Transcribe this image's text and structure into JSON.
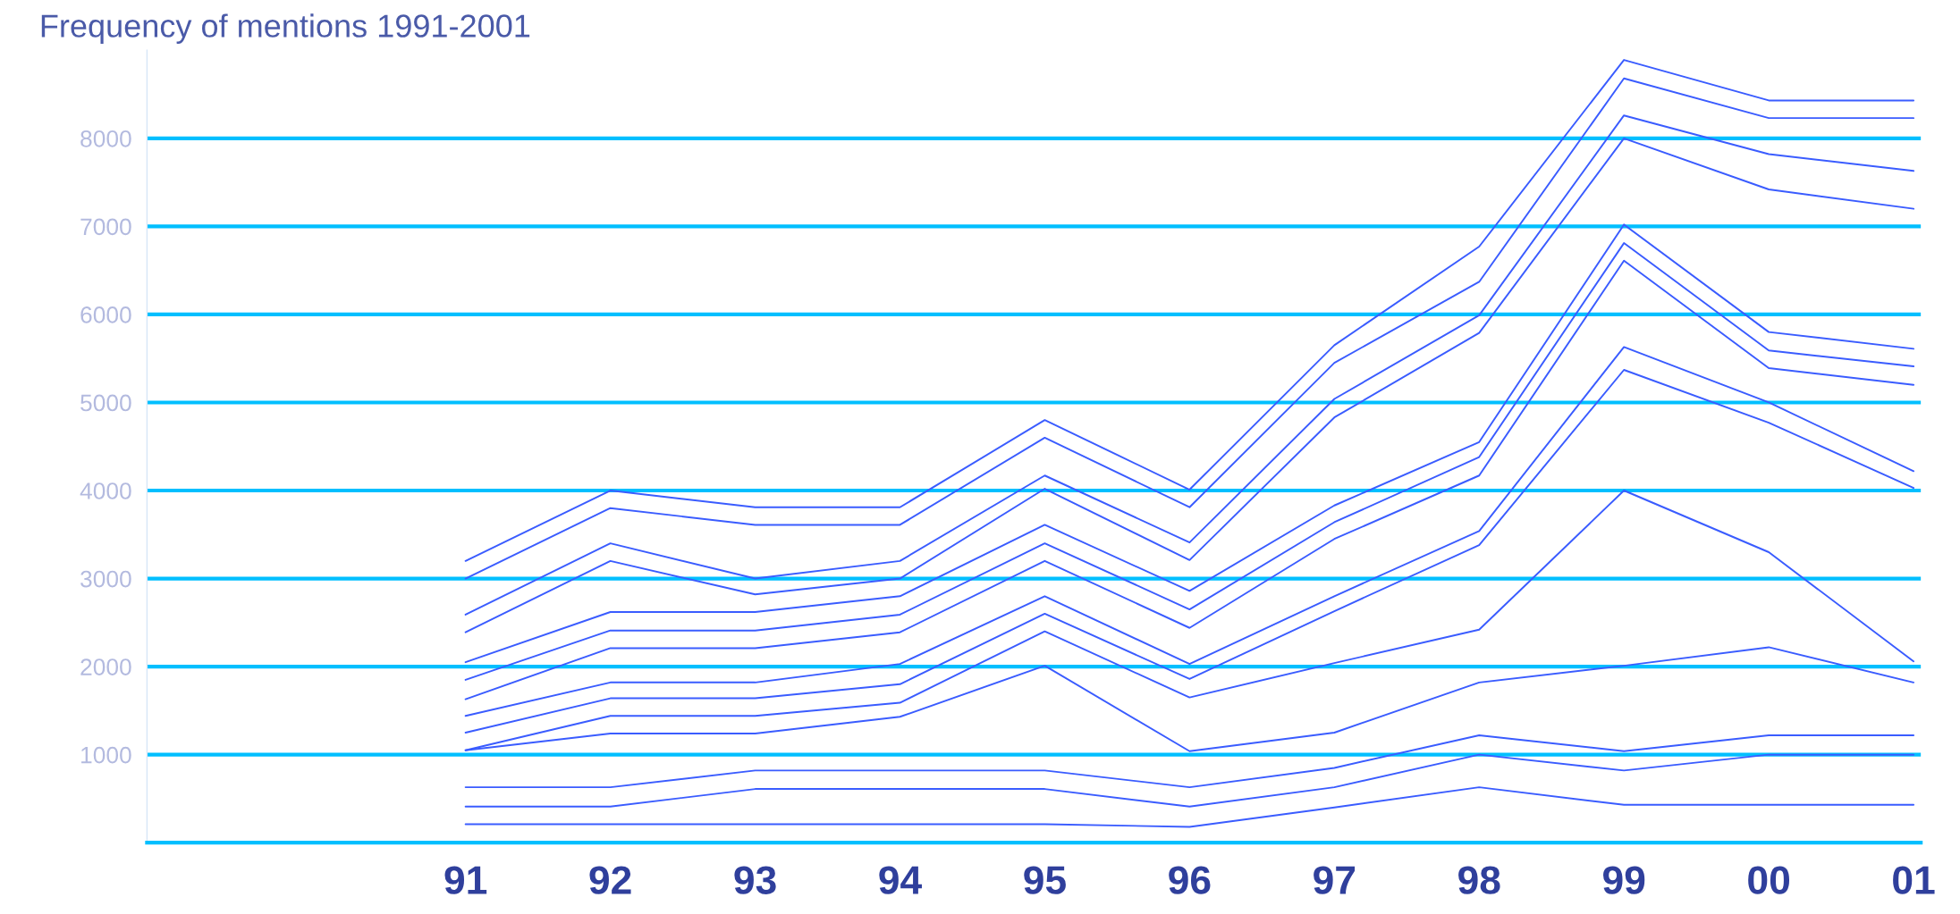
{
  "chart_data": {
    "type": "line",
    "title": "Frequency of mentions 1991-2001",
    "categories": [
      "91",
      "92",
      "93",
      "94",
      "95",
      "96",
      "97",
      "98",
      "99",
      "00",
      "01"
    ],
    "series": [
      {
        "color": "#3a5cff",
        "values": [
          210,
          210,
          210,
          210,
          210,
          180,
          400,
          630,
          430,
          430,
          430
        ]
      },
      {
        "color": "#3a5cff",
        "values": [
          410,
          410,
          610,
          610,
          610,
          410,
          630,
          1000,
          820,
          1000,
          1000
        ]
      },
      {
        "color": "#3a5cff",
        "values": [
          630,
          630,
          820,
          820,
          820,
          630,
          850,
          1220,
          1040,
          1220,
          1220
        ]
      },
      {
        "color": "#3a5cff",
        "values": [
          1050,
          1240,
          1240,
          1430,
          2010,
          1040,
          1250,
          1820,
          2010,
          2220,
          1820
        ]
      },
      {
        "color": "#3a5cff",
        "values": [
          1050,
          1440,
          1440,
          1590,
          2400,
          1650,
          2040,
          2420,
          4000,
          3300,
          2060
        ]
      },
      {
        "color": "#3a5cff",
        "values": [
          1250,
          1640,
          1640,
          1800,
          2600,
          1860,
          2630,
          3380,
          5370,
          4770,
          4030
        ]
      },
      {
        "color": "#3a5cff",
        "values": [
          1440,
          1820,
          1820,
          2030,
          2800,
          2030,
          2800,
          3540,
          5630,
          5000,
          4220
        ]
      },
      {
        "color": "#3a5cff",
        "values": [
          1630,
          2210,
          2210,
          2390,
          3200,
          2440,
          3450,
          4170,
          6610,
          5390,
          5200
        ]
      },
      {
        "color": "#3a5cff",
        "values": [
          1850,
          2410,
          2410,
          2590,
          3400,
          2650,
          3640,
          4380,
          6810,
          5590,
          5410
        ]
      },
      {
        "color": "#3a5cff",
        "values": [
          2050,
          2620,
          2620,
          2800,
          3610,
          2860,
          3830,
          4550,
          7020,
          5800,
          5610
        ]
      },
      {
        "color": "#3a5cff",
        "values": [
          2390,
          3200,
          2820,
          3000,
          4020,
          3210,
          4830,
          5790,
          8000,
          7420,
          7200
        ]
      },
      {
        "color": "#3a5cff",
        "values": [
          2590,
          3400,
          3000,
          3200,
          4170,
          3410,
          5040,
          5990,
          8260,
          7820,
          7630
        ]
      },
      {
        "color": "#3a5cff",
        "values": [
          3000,
          3800,
          3610,
          3610,
          4600,
          3810,
          5450,
          6370,
          8680,
          8230,
          8230
        ]
      },
      {
        "color": "#3a5cff",
        "values": [
          3200,
          4000,
          3810,
          3810,
          4800,
          4010,
          5650,
          6770,
          8890,
          8430,
          8430
        ]
      }
    ],
    "ylim": [
      0,
      9000
    ],
    "yticks": [
      {
        "value": 0,
        "label": null
      },
      1000,
      2000,
      3000,
      4000,
      5000,
      6000,
      7000,
      8000
    ],
    "grid": "y",
    "marker": "none",
    "line_style": "solid"
  }
}
